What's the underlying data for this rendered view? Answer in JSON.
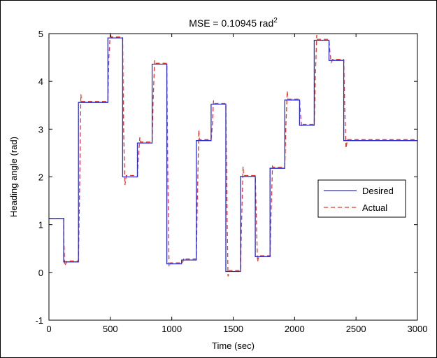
{
  "chart_data": {
    "type": "line",
    "title": "MSE = 0.10945 rad",
    "title_superscript": "2",
    "xlabel": "Time (sec)",
    "ylabel": "Heading angle (rad)",
    "xlim": [
      0,
      3000
    ],
    "ylim": [
      -1,
      5
    ],
    "xticks": [
      "0",
      "500",
      "1000",
      "1500",
      "2000",
      "2500",
      "3000"
    ],
    "yticks": [
      "-1",
      "0",
      "1",
      "2",
      "3",
      "4",
      "5"
    ],
    "grid": false,
    "legend_position": "center-right",
    "series": [
      {
        "name": "Desired",
        "color": "#2b2bd0",
        "style": "solid",
        "x": [
          0,
          120,
          120,
          240,
          240,
          480,
          480,
          600,
          600,
          720,
          720,
          840,
          840,
          960,
          960,
          1080,
          1080,
          1200,
          1200,
          1320,
          1320,
          1440,
          1440,
          1560,
          1560,
          1680,
          1680,
          1800,
          1800,
          1920,
          1920,
          2040,
          2040,
          2160,
          2160,
          2280,
          2280,
          2400,
          2400,
          3000
        ],
        "y": [
          1.13,
          1.13,
          0.22,
          0.22,
          3.56,
          3.56,
          4.91,
          4.91,
          2.0,
          2.0,
          2.71,
          2.71,
          4.36,
          4.36,
          0.18,
          0.18,
          0.26,
          0.26,
          2.76,
          2.76,
          3.52,
          3.52,
          0.02,
          0.02,
          2.01,
          2.01,
          0.33,
          0.33,
          2.18,
          2.18,
          3.61,
          3.61,
          3.08,
          3.08,
          4.86,
          4.86,
          4.44,
          4.44,
          2.76,
          2.76
        ]
      },
      {
        "name": "Actual",
        "color": "#e03a2a",
        "style": "dashed",
        "x": [
          0,
          120,
          120,
          128,
          148,
          240,
          248,
          260,
          265,
          480,
          488,
          500,
          505,
          600,
          608,
          618,
          630,
          720,
          728,
          740,
          745,
          840,
          848,
          860,
          865,
          960,
          968,
          978,
          990,
          1080,
          1088,
          1098,
          1103,
          1200,
          1208,
          1220,
          1225,
          1320,
          1328,
          1340,
          1345,
          1440,
          1448,
          1458,
          1470,
          1560,
          1568,
          1580,
          1585,
          1680,
          1688,
          1698,
          1710,
          1800,
          1808,
          1820,
          1825,
          1920,
          1928,
          1940,
          1945,
          2040,
          2048,
          2058,
          2070,
          2160,
          2168,
          2180,
          2185,
          2280,
          2288,
          2298,
          2310,
          2400,
          2408,
          2418,
          2430,
          3000
        ],
        "y": [
          1.13,
          1.13,
          0.8,
          0.14,
          0.24,
          0.24,
          1.5,
          3.73,
          3.58,
          3.58,
          4.5,
          5.02,
          4.93,
          4.93,
          3.0,
          1.83,
          2.03,
          2.03,
          2.4,
          2.83,
          2.73,
          2.73,
          3.6,
          4.44,
          4.38,
          4.38,
          2.0,
          0.12,
          0.2,
          0.2,
          0.2,
          0.3,
          0.28,
          0.28,
          1.5,
          2.98,
          2.78,
          2.78,
          3.0,
          3.6,
          3.54,
          3.54,
          1.5,
          -0.08,
          0.04,
          0.04,
          1.0,
          2.22,
          2.03,
          2.03,
          1.2,
          0.22,
          0.35,
          0.35,
          1.2,
          2.22,
          2.2,
          2.2,
          3.0,
          3.8,
          3.63,
          3.63,
          3.3,
          3.05,
          3.1,
          3.1,
          4.0,
          4.97,
          4.88,
          4.88,
          4.6,
          4.4,
          4.46,
          4.46,
          3.5,
          2.6,
          2.78,
          2.78
        ]
      }
    ]
  }
}
